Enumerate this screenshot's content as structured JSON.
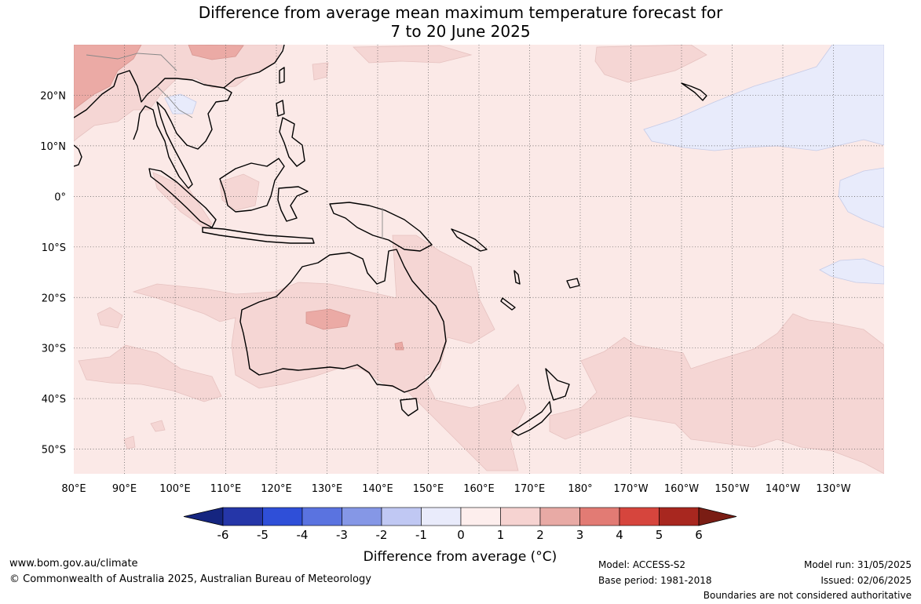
{
  "title": {
    "line1": "Difference from average mean maximum temperature forecast for",
    "line2": "7 to 20 June 2025"
  },
  "map": {
    "lon_labels": [
      "80°E",
      "90°E",
      "100°E",
      "110°E",
      "120°E",
      "130°E",
      "140°E",
      "150°E",
      "160°E",
      "170°E",
      "180°",
      "170°W",
      "160°W",
      "150°W",
      "140°W",
      "130°W"
    ],
    "lat_labels": [
      "20°N",
      "10°N",
      "0°",
      "10°S",
      "20°S",
      "30°S",
      "40°S",
      "50°S"
    ],
    "lon_range": [
      "80°E",
      "130°W"
    ],
    "lat_range": [
      "30°N",
      "55°S"
    ],
    "colors": {
      "ocean_base": "#fbe9e7",
      "anomaly_1_2": "#f5d6d4",
      "anomaly_2_3": "#ebaaa5",
      "anomaly_m1_0": "#e8ebfb",
      "coast": "#000000",
      "borders": "#888888",
      "grid": "#555555"
    }
  },
  "colorbar": {
    "ticks": [
      "-6",
      "-5",
      "-4",
      "-3",
      "-2",
      "-1",
      "0",
      "1",
      "2",
      "3",
      "4",
      "5",
      "6"
    ],
    "colors": [
      "#152580",
      "#2536a8",
      "#2f4fd8",
      "#5a73e0",
      "#8597e6",
      "#c0c8f3",
      "#e9ebfb",
      "#fdeeed",
      "#f6d3d1",
      "#e8aaa5",
      "#e27b74",
      "#d6453d",
      "#a8271f",
      "#7a1d14"
    ],
    "label": "Difference from average (°C)"
  },
  "footer": {
    "website": "www.bom.gov.au/climate",
    "copyright": "© Commonwealth of Australia 2025, Australian Bureau of Meteorology",
    "model": "Model: ACCESS-S2",
    "base_period": "Base period: 1981-2018",
    "model_run": "Model run: 31/05/2025",
    "issued": "Issued: 02/06/2025",
    "disclaimer": "Boundaries are not considered authoritative"
  }
}
